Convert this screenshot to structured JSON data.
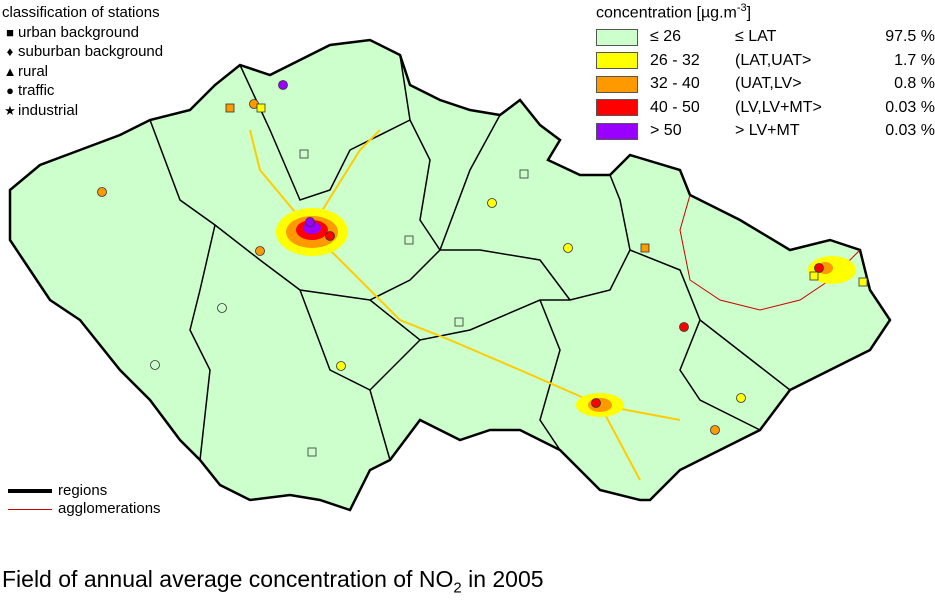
{
  "stations_legend": {
    "title": "classification of stations",
    "items": [
      {
        "symbol": "square",
        "glyph": "■",
        "label": "urban background"
      },
      {
        "symbol": "diamond",
        "glyph": "♦",
        "label": "suburban background"
      },
      {
        "symbol": "triangle",
        "glyph": "▲",
        "label": "rural"
      },
      {
        "symbol": "circle",
        "glyph": "●",
        "label": "traffic"
      },
      {
        "symbol": "star",
        "glyph": "★",
        "label": "industrial"
      }
    ]
  },
  "concentration_legend": {
    "title": "concentration [µg.m",
    "title_sup": "-3",
    "title_end": "]",
    "items": [
      {
        "range": "≤ 26",
        "class": "≤ LAT",
        "percent": "97.5 %",
        "color": "#ccffcc"
      },
      {
        "range": "26 - 32",
        "class": "(LAT,UAT>",
        "percent": "1.7 %",
        "color": "#ffff00"
      },
      {
        "range": "32 - 40",
        "class": "(UAT,LV>",
        "percent": "0.8 %",
        "color": "#ff9900"
      },
      {
        "range": "40 - 50",
        "class": "(LV,LV+MT>",
        "percent": "0.03 %",
        "color": "#ff0000"
      },
      {
        "range": "> 50",
        "class": "> LV+MT",
        "percent": "0.03 %",
        "color": "#9900ff"
      }
    ]
  },
  "lines_legend": {
    "items": [
      {
        "label": "regions",
        "color": "#000000"
      },
      {
        "label": "agglomerations",
        "color": "#cc0000"
      }
    ]
  },
  "caption": {
    "text": "Field of annual average concentration of NO",
    "sub": "2",
    "end": " in 2005"
  }
}
